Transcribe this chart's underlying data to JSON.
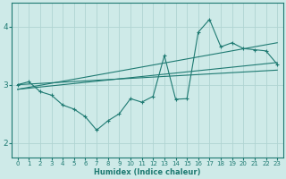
{
  "xlabel": "Humidex (Indice chaleur)",
  "bg_color": "#ceeae8",
  "grid_color": "#b0d4d2",
  "line_color": "#1e7a72",
  "xlim": [
    -0.5,
    23.5
  ],
  "ylim": [
    1.75,
    4.4
  ],
  "xticks": [
    0,
    1,
    2,
    3,
    4,
    5,
    6,
    7,
    8,
    9,
    10,
    11,
    12,
    13,
    14,
    15,
    16,
    17,
    18,
    19,
    20,
    21,
    22,
    23
  ],
  "yticks": [
    2,
    3,
    4
  ],
  "line1_x": [
    0,
    1,
    2,
    3,
    4,
    5,
    6,
    7,
    8,
    9,
    10,
    11,
    12,
    13,
    14,
    15,
    16,
    17,
    18,
    19,
    20,
    21,
    22,
    23
  ],
  "line1_y": [
    3.0,
    3.05,
    2.88,
    2.82,
    2.65,
    2.58,
    2.45,
    2.22,
    2.38,
    2.5,
    2.76,
    2.7,
    2.8,
    3.5,
    2.75,
    2.76,
    3.9,
    4.12,
    3.65,
    3.72,
    3.62,
    3.6,
    3.58,
    3.35
  ],
  "line2_x": [
    0,
    23
  ],
  "line2_y": [
    2.92,
    3.72
  ],
  "line3_x": [
    0,
    23
  ],
  "line3_y": [
    2.92,
    3.38
  ],
  "line4_x": [
    0,
    23
  ],
  "line4_y": [
    3.0,
    3.25
  ]
}
